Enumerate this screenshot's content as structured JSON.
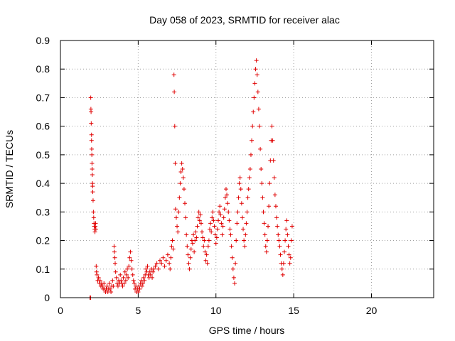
{
  "chart_data": {
    "type": "scatter",
    "title": "Day 058 of 2023, SRMTID for receiver alac",
    "xlabel": "GPS time / hours",
    "ylabel": "SRMTID / TECUs",
    "xlim": [
      0,
      24
    ],
    "ylim": [
      0,
      0.9
    ],
    "xticks": [
      0,
      5,
      10,
      15,
      20
    ],
    "yticks": [
      0,
      0.1,
      0.2,
      0.3,
      0.4,
      0.5,
      0.6,
      0.7,
      0.8,
      0.9
    ],
    "xtick_labels": [
      "0",
      "5",
      "10",
      "15",
      "20"
    ],
    "ytick_labels": [
      "0",
      "0.1",
      "0.2",
      "0.3",
      "0.4",
      "0.5",
      "0.6",
      "0.7",
      "0.8",
      "0.9"
    ],
    "grid": true,
    "marker": "+",
    "color": "#e00000",
    "series": [
      {
        "name": "SRMTID",
        "points": [
          [
            1.9,
            0.0
          ],
          [
            1.92,
            0.0
          ],
          [
            1.94,
            0.0
          ],
          [
            1.95,
            0.7
          ],
          [
            1.96,
            0.66
          ],
          [
            1.97,
            0.65
          ],
          [
            1.98,
            0.61
          ],
          [
            2.0,
            0.57
          ],
          [
            2.0,
            0.55
          ],
          [
            2.01,
            0.52
          ],
          [
            2.02,
            0.5
          ],
          [
            2.03,
            0.47
          ],
          [
            2.04,
            0.45
          ],
          [
            2.05,
            0.43
          ],
          [
            2.06,
            0.4
          ],
          [
            2.07,
            0.39
          ],
          [
            2.08,
            0.37
          ],
          [
            2.1,
            0.34
          ],
          [
            2.12,
            0.3
          ],
          [
            2.14,
            0.28
          ],
          [
            2.16,
            0.26
          ],
          [
            2.18,
            0.25
          ],
          [
            2.2,
            0.24
          ],
          [
            2.22,
            0.23
          ],
          [
            2.24,
            0.25
          ],
          [
            2.26,
            0.26
          ],
          [
            2.28,
            0.24
          ],
          [
            2.3,
            0.11
          ],
          [
            2.32,
            0.09
          ],
          [
            2.35,
            0.08
          ],
          [
            2.4,
            0.06
          ],
          [
            2.45,
            0.07
          ],
          [
            2.5,
            0.05
          ],
          [
            2.55,
            0.06
          ],
          [
            2.6,
            0.04
          ],
          [
            2.65,
            0.05
          ],
          [
            2.7,
            0.04
          ],
          [
            2.75,
            0.03
          ],
          [
            2.8,
            0.05
          ],
          [
            2.85,
            0.03
          ],
          [
            2.9,
            0.02
          ],
          [
            2.95,
            0.03
          ],
          [
            3.0,
            0.04
          ],
          [
            3.05,
            0.02
          ],
          [
            3.1,
            0.03
          ],
          [
            3.15,
            0.05
          ],
          [
            3.2,
            0.03
          ],
          [
            3.25,
            0.02
          ],
          [
            3.3,
            0.04
          ],
          [
            3.35,
            0.06
          ],
          [
            3.4,
            0.04
          ],
          [
            3.45,
            0.18
          ],
          [
            3.47,
            0.16
          ],
          [
            3.5,
            0.14
          ],
          [
            3.52,
            0.12
          ],
          [
            3.55,
            0.09
          ],
          [
            3.6,
            0.07
          ],
          [
            3.65,
            0.05
          ],
          [
            3.7,
            0.04
          ],
          [
            3.75,
            0.06
          ],
          [
            3.8,
            0.05
          ],
          [
            3.85,
            0.08
          ],
          [
            3.9,
            0.06
          ],
          [
            3.95,
            0.05
          ],
          [
            4.0,
            0.04
          ],
          [
            4.05,
            0.07
          ],
          [
            4.1,
            0.05
          ],
          [
            4.15,
            0.09
          ],
          [
            4.2,
            0.06
          ],
          [
            4.25,
            0.08
          ],
          [
            4.3,
            0.1
          ],
          [
            4.35,
            0.07
          ],
          [
            4.4,
            0.11
          ],
          [
            4.45,
            0.14
          ],
          [
            4.5,
            0.16
          ],
          [
            4.55,
            0.13
          ],
          [
            4.6,
            0.1
          ],
          [
            4.65,
            0.08
          ],
          [
            4.7,
            0.06
          ],
          [
            4.75,
            0.05
          ],
          [
            4.8,
            0.03
          ],
          [
            4.85,
            0.04
          ],
          [
            4.9,
            0.02
          ],
          [
            4.95,
            0.03
          ],
          [
            5.0,
            0.02
          ],
          [
            5.05,
            0.04
          ],
          [
            5.1,
            0.03
          ],
          [
            5.15,
            0.05
          ],
          [
            5.2,
            0.06
          ],
          [
            5.25,
            0.04
          ],
          [
            5.3,
            0.05
          ],
          [
            5.35,
            0.07
          ],
          [
            5.4,
            0.06
          ],
          [
            5.45,
            0.08
          ],
          [
            5.5,
            0.1
          ],
          [
            5.55,
            0.09
          ],
          [
            5.6,
            0.11
          ],
          [
            5.65,
            0.08
          ],
          [
            5.7,
            0.07
          ],
          [
            5.75,
            0.09
          ],
          [
            5.8,
            0.08
          ],
          [
            5.85,
            0.1
          ],
          [
            5.9,
            0.07
          ],
          [
            5.95,
            0.09
          ],
          [
            6.0,
            0.1
          ],
          [
            6.1,
            0.11
          ],
          [
            6.2,
            0.12
          ],
          [
            6.3,
            0.1
          ],
          [
            6.4,
            0.13
          ],
          [
            6.5,
            0.12
          ],
          [
            6.6,
            0.14
          ],
          [
            6.7,
            0.11
          ],
          [
            6.8,
            0.13
          ],
          [
            6.9,
            0.15
          ],
          [
            7.0,
            0.12
          ],
          [
            7.05,
            0.1
          ],
          [
            7.1,
            0.14
          ],
          [
            7.15,
            0.18
          ],
          [
            7.2,
            0.2
          ],
          [
            7.25,
            0.17
          ],
          [
            7.3,
            0.78
          ],
          [
            7.32,
            0.72
          ],
          [
            7.35,
            0.6
          ],
          [
            7.38,
            0.47
          ],
          [
            7.4,
            0.31
          ],
          [
            7.45,
            0.28
          ],
          [
            7.5,
            0.25
          ],
          [
            7.55,
            0.23
          ],
          [
            7.6,
            0.3
          ],
          [
            7.65,
            0.35
          ],
          [
            7.7,
            0.4
          ],
          [
            7.75,
            0.44
          ],
          [
            7.8,
            0.47
          ],
          [
            7.85,
            0.45
          ],
          [
            7.9,
            0.42
          ],
          [
            7.95,
            0.38
          ],
          [
            8.0,
            0.33
          ],
          [
            8.05,
            0.28
          ],
          [
            8.1,
            0.22
          ],
          [
            8.15,
            0.18
          ],
          [
            8.2,
            0.15
          ],
          [
            8.25,
            0.12
          ],
          [
            8.3,
            0.1
          ],
          [
            8.35,
            0.14
          ],
          [
            8.4,
            0.17
          ],
          [
            8.45,
            0.2
          ],
          [
            8.5,
            0.19
          ],
          [
            8.55,
            0.22
          ],
          [
            8.6,
            0.16
          ],
          [
            8.65,
            0.2
          ],
          [
            8.7,
            0.23
          ],
          [
            8.75,
            0.21
          ],
          [
            8.8,
            0.25
          ],
          [
            8.85,
            0.28
          ],
          [
            8.9,
            0.3
          ],
          [
            8.95,
            0.27
          ],
          [
            9.0,
            0.29
          ],
          [
            9.05,
            0.26
          ],
          [
            9.1,
            0.23
          ],
          [
            9.15,
            0.21
          ],
          [
            9.2,
            0.18
          ],
          [
            9.25,
            0.2
          ],
          [
            9.3,
            0.16
          ],
          [
            9.35,
            0.13
          ],
          [
            9.4,
            0.15
          ],
          [
            9.45,
            0.12
          ],
          [
            9.5,
            0.18
          ],
          [
            9.55,
            0.2
          ],
          [
            9.6,
            0.24
          ],
          [
            9.65,
            0.26
          ],
          [
            9.7,
            0.23
          ],
          [
            9.75,
            0.28
          ],
          [
            9.8,
            0.3
          ],
          [
            9.85,
            0.27
          ],
          [
            9.9,
            0.25
          ],
          [
            9.95,
            0.22
          ],
          [
            10.0,
            0.19
          ],
          [
            10.05,
            0.21
          ],
          [
            10.1,
            0.24
          ],
          [
            10.15,
            0.27
          ],
          [
            10.2,
            0.3
          ],
          [
            10.25,
            0.32
          ],
          [
            10.3,
            0.29
          ],
          [
            10.35,
            0.26
          ],
          [
            10.4,
            0.22
          ],
          [
            10.45,
            0.25
          ],
          [
            10.5,
            0.28
          ],
          [
            10.55,
            0.31
          ],
          [
            10.6,
            0.35
          ],
          [
            10.65,
            0.38
          ],
          [
            10.7,
            0.36
          ],
          [
            10.75,
            0.33
          ],
          [
            10.8,
            0.3
          ],
          [
            10.85,
            0.27
          ],
          [
            10.9,
            0.24
          ],
          [
            10.95,
            0.22
          ],
          [
            11.0,
            0.18
          ],
          [
            11.05,
            0.14
          ],
          [
            11.1,
            0.1
          ],
          [
            11.15,
            0.07
          ],
          [
            11.2,
            0.05
          ],
          [
            11.25,
            0.12
          ],
          [
            11.3,
            0.2
          ],
          [
            11.35,
            0.26
          ],
          [
            11.4,
            0.3
          ],
          [
            11.45,
            0.35
          ],
          [
            11.5,
            0.4
          ],
          [
            11.55,
            0.42
          ],
          [
            11.6,
            0.38
          ],
          [
            11.65,
            0.33
          ],
          [
            11.7,
            0.28
          ],
          [
            11.75,
            0.24
          ],
          [
            11.8,
            0.2
          ],
          [
            11.85,
            0.18
          ],
          [
            11.9,
            0.22
          ],
          [
            11.95,
            0.26
          ],
          [
            12.0,
            0.3
          ],
          [
            12.05,
            0.35
          ],
          [
            12.1,
            0.38
          ],
          [
            12.15,
            0.42
          ],
          [
            12.2,
            0.45
          ],
          [
            12.25,
            0.5
          ],
          [
            12.3,
            0.55
          ],
          [
            12.35,
            0.6
          ],
          [
            12.4,
            0.65
          ],
          [
            12.45,
            0.7
          ],
          [
            12.5,
            0.75
          ],
          [
            12.55,
            0.8
          ],
          [
            12.6,
            0.83
          ],
          [
            12.65,
            0.78
          ],
          [
            12.7,
            0.72
          ],
          [
            12.75,
            0.66
          ],
          [
            12.8,
            0.6
          ],
          [
            12.85,
            0.52
          ],
          [
            12.9,
            0.45
          ],
          [
            12.95,
            0.4
          ],
          [
            13.0,
            0.35
          ],
          [
            13.05,
            0.3
          ],
          [
            13.1,
            0.26
          ],
          [
            13.15,
            0.22
          ],
          [
            13.2,
            0.18
          ],
          [
            13.25,
            0.16
          ],
          [
            13.3,
            0.2
          ],
          [
            13.35,
            0.25
          ],
          [
            13.4,
            0.32
          ],
          [
            13.45,
            0.4
          ],
          [
            13.5,
            0.48
          ],
          [
            13.55,
            0.55
          ],
          [
            13.6,
            0.6
          ],
          [
            13.65,
            0.55
          ],
          [
            13.7,
            0.48
          ],
          [
            13.75,
            0.42
          ],
          [
            13.8,
            0.36
          ],
          [
            13.85,
            0.32
          ],
          [
            13.9,
            0.28
          ],
          [
            13.95,
            0.25
          ],
          [
            14.0,
            0.22
          ],
          [
            14.05,
            0.2
          ],
          [
            14.1,
            0.18
          ],
          [
            14.15,
            0.15
          ],
          [
            14.2,
            0.12
          ],
          [
            14.25,
            0.1
          ],
          [
            14.3,
            0.08
          ],
          [
            14.35,
            0.12
          ],
          [
            14.4,
            0.16
          ],
          [
            14.45,
            0.2
          ],
          [
            14.5,
            0.24
          ],
          [
            14.55,
            0.27
          ],
          [
            14.6,
            0.22
          ],
          [
            14.65,
            0.18
          ],
          [
            14.7,
            0.15
          ],
          [
            14.75,
            0.12
          ],
          [
            14.8,
            0.14
          ],
          [
            14.85,
            0.2
          ],
          [
            14.9,
            0.25
          ]
        ]
      }
    ]
  }
}
